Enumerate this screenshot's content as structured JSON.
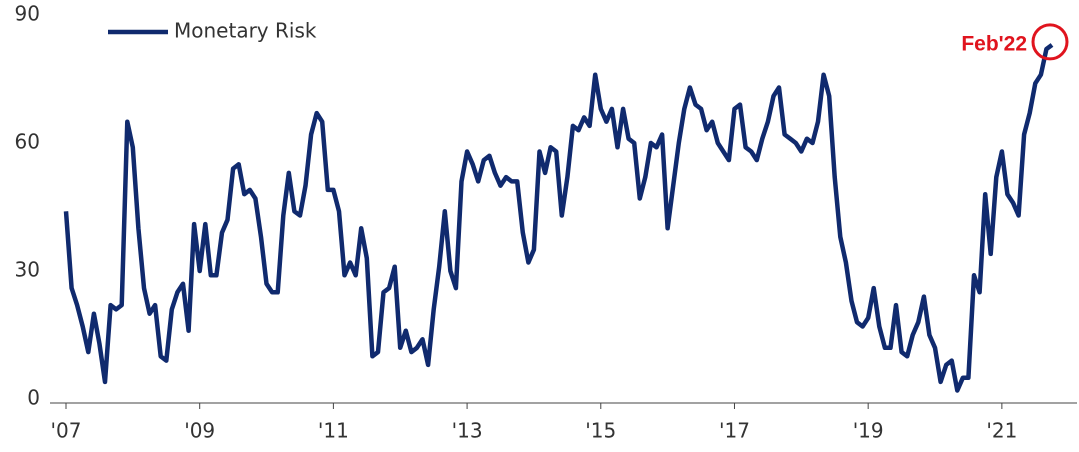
{
  "chart_data": {
    "type": "line",
    "categories": [
      "'07",
      null,
      null,
      null,
      null,
      null,
      null,
      null,
      null,
      null,
      null,
      null,
      null,
      null,
      null,
      null,
      null,
      null,
      null,
      null,
      null,
      null,
      null,
      null,
      "'09",
      null,
      null,
      null,
      null,
      null,
      null,
      null,
      null,
      null,
      null,
      null,
      null,
      null,
      null,
      null,
      null,
      null,
      null,
      null,
      null,
      null,
      null,
      null,
      "'11",
      null,
      null,
      null,
      null,
      null,
      null,
      null,
      null,
      null,
      null,
      null,
      null,
      null,
      null,
      null,
      null,
      null,
      null,
      null,
      null,
      null,
      null,
      null,
      "'13",
      null,
      null,
      null,
      null,
      null,
      null,
      null,
      null,
      null,
      null,
      null,
      null,
      null,
      null,
      null,
      null,
      null,
      null,
      null,
      null,
      null,
      null,
      null,
      "'15",
      null,
      null,
      null,
      null,
      null,
      null,
      null,
      null,
      null,
      null,
      null,
      null,
      null,
      null,
      null,
      null,
      null,
      null,
      null,
      null,
      null,
      null,
      null,
      "'17",
      null,
      null,
      null,
      null,
      null,
      null,
      null,
      null,
      null,
      null,
      null,
      null,
      null,
      null,
      null,
      null,
      null,
      null,
      null,
      null,
      null,
      null,
      null,
      "'19",
      null,
      null,
      null,
      null,
      null,
      null,
      null,
      null,
      null,
      null,
      null,
      null,
      null,
      null,
      null,
      null,
      null,
      null,
      null,
      null,
      null,
      null,
      null,
      "'21",
      null,
      null,
      null,
      null,
      null,
      null,
      null,
      null,
      null
    ],
    "series": [
      {
        "name": "Monetary Risk",
        "color": "#102a6e",
        "values": [
          44,
          26,
          22,
          17,
          11,
          20,
          13,
          4,
          22,
          21,
          22,
          65,
          59,
          40,
          26,
          20,
          22,
          10,
          9,
          21,
          25,
          27,
          16,
          41,
          30,
          41,
          29,
          29,
          39,
          42,
          54,
          55,
          48,
          49,
          47,
          38,
          27,
          25,
          25,
          43,
          53,
          44,
          43,
          50,
          62,
          67,
          65,
          49,
          49,
          44,
          29,
          32,
          29,
          40,
          33,
          10,
          11,
          25,
          26,
          31,
          12,
          16,
          11,
          12,
          14,
          8,
          21,
          31,
          44,
          30,
          26,
          51,
          58,
          55,
          51,
          56,
          57,
          53,
          50,
          52,
          51,
          51,
          39,
          32,
          35,
          58,
          53,
          59,
          58,
          43,
          52,
          64,
          63,
          66,
          64,
          76,
          68,
          65,
          68,
          59,
          68,
          61,
          60,
          47,
          52,
          60,
          59,
          62,
          40,
          50,
          60,
          68,
          73,
          69,
          68,
          63,
          65,
          60,
          58,
          56,
          68,
          69,
          59,
          58,
          56,
          61,
          65,
          71,
          73,
          62,
          61,
          60,
          58,
          61,
          60,
          65,
          76,
          71,
          52,
          38,
          32,
          23,
          18,
          17,
          19,
          26,
          17,
          12,
          12,
          22,
          11,
          10,
          15,
          18,
          24,
          15,
          12,
          4,
          8,
          9,
          2,
          5,
          5,
          29,
          25,
          48,
          34,
          52,
          58,
          48,
          46,
          43,
          62,
          67,
          74,
          76,
          82,
          83
        ]
      }
    ],
    "ylim": [
      0,
      90
    ],
    "yticks": [
      0,
      30,
      60,
      90
    ],
    "annotation": "Feb'22",
    "annotation_color": "#e0141e",
    "legend": "top-left",
    "grid": false
  }
}
